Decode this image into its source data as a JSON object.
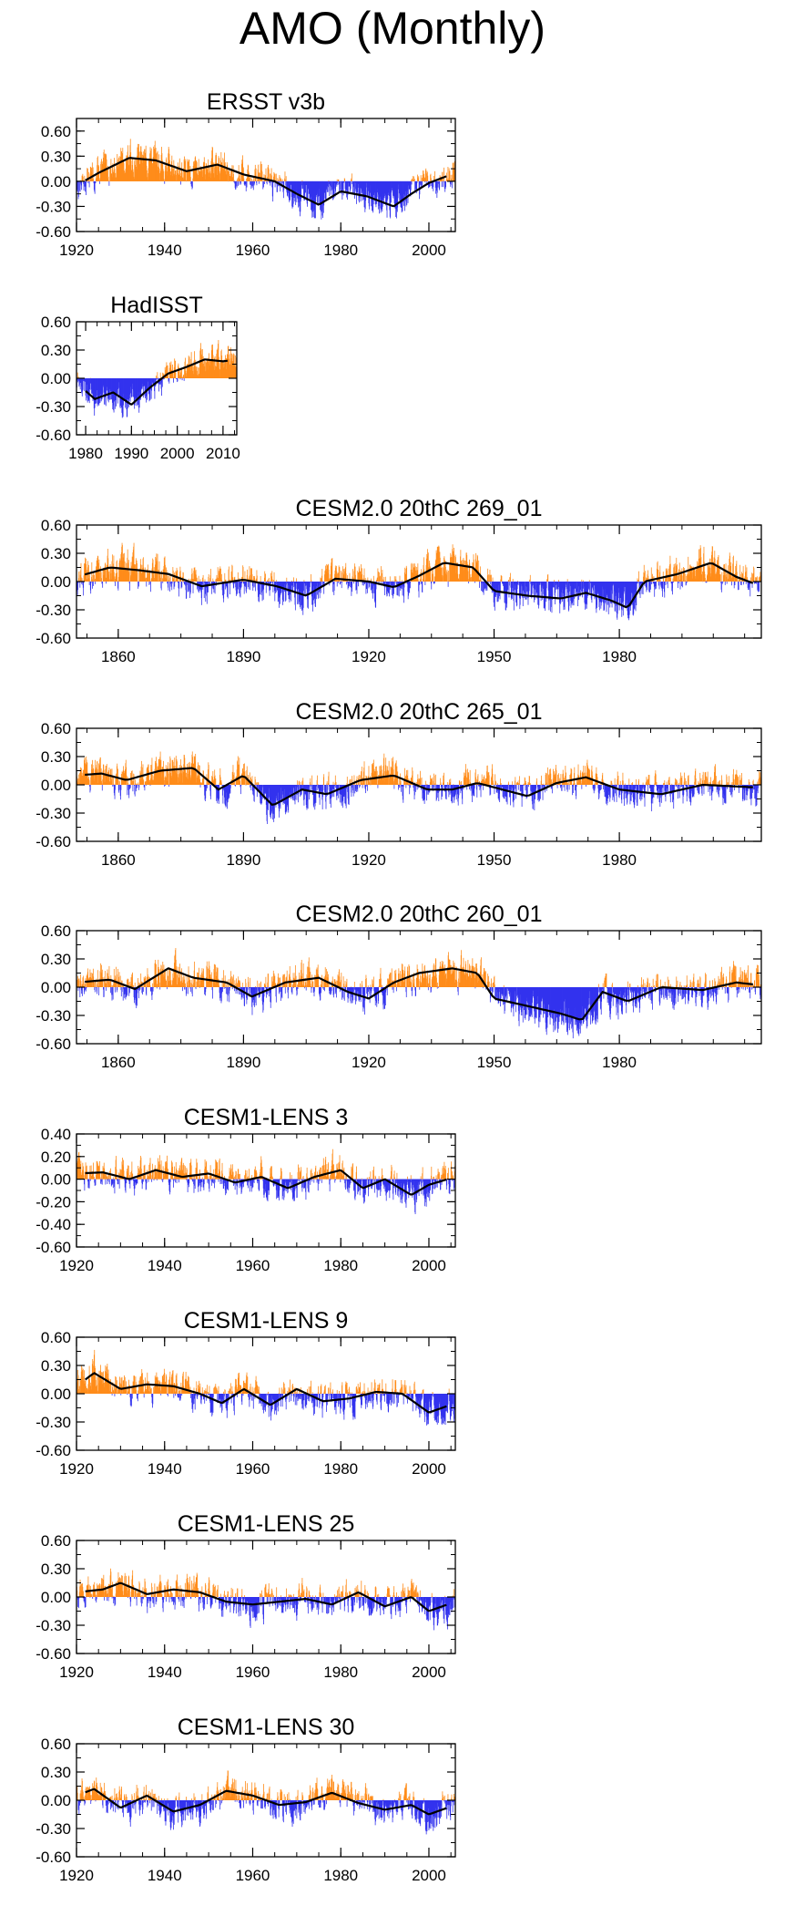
{
  "page_title": "AMO (Monthly)",
  "colors": {
    "positive": "#ff8c1a",
    "negative": "#3333ee",
    "smooth": "#000000",
    "axis": "#000000"
  },
  "chart_data": [
    {
      "type": "bar",
      "title": "ERSST v3b",
      "x_range": [
        1920,
        2006
      ],
      "ylim": [
        -0.6,
        0.75
      ],
      "yticks": [
        -0.6,
        -0.3,
        0.0,
        0.3,
        0.6
      ],
      "ytick_labels": [
        "-0.60",
        "-0.30",
        "0.00",
        "0.30",
        "0.60"
      ],
      "xticks": [
        1920,
        1940,
        1960,
        1980,
        2000
      ],
      "xtick_labels": [
        "1920",
        "1940",
        "1960",
        "1980",
        "2000"
      ],
      "trend": [
        [
          1920,
          -0.05
        ],
        [
          1925,
          0.1
        ],
        [
          1932,
          0.28
        ],
        [
          1938,
          0.25
        ],
        [
          1945,
          0.12
        ],
        [
          1952,
          0.2
        ],
        [
          1958,
          0.08
        ],
        [
          1965,
          0.0
        ],
        [
          1970,
          -0.15
        ],
        [
          1975,
          -0.28
        ],
        [
          1980,
          -0.12
        ],
        [
          1986,
          -0.18
        ],
        [
          1992,
          -0.3
        ],
        [
          1996,
          -0.15
        ],
        [
          2000,
          -0.02
        ],
        [
          2006,
          0.1
        ]
      ],
      "noise": 0.14
    },
    {
      "type": "bar",
      "title": "HadISST",
      "x_range": [
        1978,
        2013
      ],
      "ylim": [
        -0.6,
        0.6
      ],
      "yticks": [
        -0.6,
        -0.3,
        0.0,
        0.3,
        0.6
      ],
      "ytick_labels": [
        "-0.60",
        "-0.30",
        "0.00",
        "0.30",
        "0.60"
      ],
      "xticks": [
        1980,
        1990,
        2000,
        2010
      ],
      "xtick_labels": [
        "1980",
        "1990",
        "2000",
        "2010"
      ],
      "trend": [
        [
          1978,
          -0.05
        ],
        [
          1982,
          -0.22
        ],
        [
          1986,
          -0.15
        ],
        [
          1990,
          -0.28
        ],
        [
          1994,
          -0.1
        ],
        [
          1998,
          0.05
        ],
        [
          2002,
          0.12
        ],
        [
          2006,
          0.2
        ],
        [
          2010,
          0.18
        ],
        [
          2013,
          0.2
        ]
      ],
      "noise": 0.12
    },
    {
      "type": "bar",
      "title": "CESM2.0 20thC 269_01",
      "x_range": [
        1850,
        2014
      ],
      "ylim": [
        -0.6,
        0.6
      ],
      "yticks": [
        -0.6,
        -0.3,
        0.0,
        0.3,
        0.6
      ],
      "ytick_labels": [
        "-0.60",
        "-0.30",
        "0.00",
        "0.30",
        "0.60"
      ],
      "xticks": [
        1860,
        1890,
        1920,
        1950,
        1980
      ],
      "xtick_labels": [
        "1860",
        "1890",
        "1920",
        "1950",
        "1980"
      ],
      "trend": [
        [
          1850,
          0.05
        ],
        [
          1858,
          0.15
        ],
        [
          1865,
          0.12
        ],
        [
          1872,
          0.08
        ],
        [
          1880,
          -0.05
        ],
        [
          1890,
          0.02
        ],
        [
          1898,
          -0.05
        ],
        [
          1905,
          -0.15
        ],
        [
          1912,
          0.03
        ],
        [
          1920,
          0.0
        ],
        [
          1926,
          -0.06
        ],
        [
          1932,
          0.06
        ],
        [
          1938,
          0.2
        ],
        [
          1945,
          0.15
        ],
        [
          1950,
          -0.1
        ],
        [
          1958,
          -0.15
        ],
        [
          1966,
          -0.18
        ],
        [
          1972,
          -0.12
        ],
        [
          1978,
          -0.2
        ],
        [
          1982,
          -0.28
        ],
        [
          1986,
          0.0
        ],
        [
          1994,
          0.08
        ],
        [
          2002,
          0.2
        ],
        [
          2008,
          0.05
        ],
        [
          2014,
          -0.05
        ]
      ],
      "noise": 0.14
    },
    {
      "type": "bar",
      "title": "CESM2.0 20thC 265_01",
      "x_range": [
        1850,
        2014
      ],
      "ylim": [
        -0.6,
        0.6
      ],
      "yticks": [
        -0.6,
        -0.3,
        0.0,
        0.3,
        0.6
      ],
      "ytick_labels": [
        "-0.60",
        "-0.30",
        "0.00",
        "0.30",
        "0.60"
      ],
      "xticks": [
        1860,
        1890,
        1920,
        1950,
        1980
      ],
      "xtick_labels": [
        "1860",
        "1890",
        "1920",
        "1950",
        "1980"
      ],
      "trend": [
        [
          1850,
          0.1
        ],
        [
          1856,
          0.12
        ],
        [
          1862,
          0.05
        ],
        [
          1870,
          0.15
        ],
        [
          1878,
          0.18
        ],
        [
          1884,
          -0.05
        ],
        [
          1890,
          0.1
        ],
        [
          1897,
          -0.22
        ],
        [
          1904,
          -0.05
        ],
        [
          1910,
          -0.1
        ],
        [
          1918,
          0.05
        ],
        [
          1926,
          0.1
        ],
        [
          1934,
          -0.05
        ],
        [
          1940,
          -0.05
        ],
        [
          1946,
          0.02
        ],
        [
          1952,
          -0.05
        ],
        [
          1958,
          -0.12
        ],
        [
          1965,
          0.02
        ],
        [
          1972,
          0.08
        ],
        [
          1980,
          -0.05
        ],
        [
          1990,
          -0.1
        ],
        [
          2000,
          0.0
        ],
        [
          2014,
          -0.03
        ]
      ],
      "noise": 0.13
    },
    {
      "type": "bar",
      "title": "CESM2.0 20thC 260_01",
      "x_range": [
        1850,
        2014
      ],
      "ylim": [
        -0.6,
        0.6
      ],
      "yticks": [
        -0.6,
        -0.3,
        0.0,
        0.3,
        0.6
      ],
      "ytick_labels": [
        "-0.60",
        "-0.30",
        "0.00",
        "0.30",
        "0.60"
      ],
      "xticks": [
        1860,
        1890,
        1920,
        1950,
        1980
      ],
      "xtick_labels": [
        "1860",
        "1890",
        "1920",
        "1950",
        "1980"
      ],
      "trend": [
        [
          1850,
          0.05
        ],
        [
          1858,
          0.08
        ],
        [
          1864,
          -0.02
        ],
        [
          1872,
          0.2
        ],
        [
          1878,
          0.1
        ],
        [
          1886,
          0.05
        ],
        [
          1892,
          -0.1
        ],
        [
          1900,
          0.05
        ],
        [
          1908,
          0.1
        ],
        [
          1915,
          -0.05
        ],
        [
          1920,
          -0.12
        ],
        [
          1926,
          0.05
        ],
        [
          1932,
          0.15
        ],
        [
          1940,
          0.2
        ],
        [
          1946,
          0.15
        ],
        [
          1950,
          -0.12
        ],
        [
          1958,
          -0.2
        ],
        [
          1966,
          -0.28
        ],
        [
          1971,
          -0.35
        ],
        [
          1976,
          -0.05
        ],
        [
          1982,
          -0.15
        ],
        [
          1990,
          0.0
        ],
        [
          2000,
          -0.03
        ],
        [
          2008,
          0.05
        ],
        [
          2014,
          0.02
        ]
      ],
      "noise": 0.14
    },
    {
      "type": "bar",
      "title": "CESM1-LENS 3",
      "x_range": [
        1920,
        2006
      ],
      "ylim": [
        -0.6,
        0.4
      ],
      "yticks": [
        -0.6,
        -0.4,
        -0.2,
        0.0,
        0.2,
        0.4
      ],
      "ytick_labels": [
        "-0.60",
        "-0.40",
        "-0.20",
        "0.00",
        "0.20",
        "0.40"
      ],
      "xticks": [
        1920,
        1940,
        1960,
        1980,
        2000
      ],
      "xtick_labels": [
        "1920",
        "1940",
        "1960",
        "1980",
        "2000"
      ],
      "trend": [
        [
          1920,
          0.05
        ],
        [
          1926,
          0.06
        ],
        [
          1932,
          0.0
        ],
        [
          1938,
          0.08
        ],
        [
          1944,
          0.02
        ],
        [
          1950,
          0.05
        ],
        [
          1956,
          -0.03
        ],
        [
          1962,
          0.02
        ],
        [
          1968,
          -0.08
        ],
        [
          1974,
          0.02
        ],
        [
          1980,
          0.08
        ],
        [
          1985,
          -0.08
        ],
        [
          1990,
          0.0
        ],
        [
          1996,
          -0.14
        ],
        [
          2000,
          -0.05
        ],
        [
          2006,
          0.02
        ]
      ],
      "noise": 0.11
    },
    {
      "type": "bar",
      "title": "CESM1-LENS 9",
      "x_range": [
        1920,
        2006
      ],
      "ylim": [
        -0.6,
        0.6
      ],
      "yticks": [
        -0.6,
        -0.3,
        0.0,
        0.3,
        0.6
      ],
      "ytick_labels": [
        "-0.60",
        "-0.30",
        "0.00",
        "0.30",
        "0.60"
      ],
      "xticks": [
        1920,
        1940,
        1960,
        1980,
        2000
      ],
      "xtick_labels": [
        "1920",
        "1940",
        "1960",
        "1980",
        "2000"
      ],
      "trend": [
        [
          1920,
          0.08
        ],
        [
          1924,
          0.22
        ],
        [
          1930,
          0.05
        ],
        [
          1936,
          0.1
        ],
        [
          1942,
          0.08
        ],
        [
          1948,
          0.0
        ],
        [
          1953,
          -0.1
        ],
        [
          1958,
          0.05
        ],
        [
          1964,
          -0.12
        ],
        [
          1970,
          0.05
        ],
        [
          1976,
          -0.08
        ],
        [
          1982,
          -0.05
        ],
        [
          1988,
          0.02
        ],
        [
          1994,
          0.0
        ],
        [
          2000,
          -0.2
        ],
        [
          2006,
          -0.1
        ]
      ],
      "noise": 0.13
    },
    {
      "type": "bar",
      "title": "CESM1-LENS 25",
      "x_range": [
        1920,
        2006
      ],
      "ylim": [
        -0.6,
        0.6
      ],
      "yticks": [
        -0.6,
        -0.3,
        0.0,
        0.3,
        0.6
      ],
      "ytick_labels": [
        "-0.60",
        "-0.30",
        "0.00",
        "0.30",
        "0.60"
      ],
      "xticks": [
        1920,
        1940,
        1960,
        1980,
        2000
      ],
      "xtick_labels": [
        "1920",
        "1940",
        "1960",
        "1980",
        "2000"
      ],
      "trend": [
        [
          1920,
          0.05
        ],
        [
          1926,
          0.08
        ],
        [
          1930,
          0.15
        ],
        [
          1936,
          0.03
        ],
        [
          1942,
          0.08
        ],
        [
          1948,
          0.05
        ],
        [
          1954,
          -0.05
        ],
        [
          1960,
          -0.08
        ],
        [
          1966,
          -0.05
        ],
        [
          1972,
          -0.02
        ],
        [
          1978,
          -0.08
        ],
        [
          1984,
          0.05
        ],
        [
          1990,
          -0.1
        ],
        [
          1996,
          0.0
        ],
        [
          2000,
          -0.15
        ],
        [
          2006,
          -0.05
        ]
      ],
      "noise": 0.13
    },
    {
      "type": "bar",
      "title": "CESM1-LENS 30",
      "x_range": [
        1920,
        2006
      ],
      "ylim": [
        -0.6,
        0.6
      ],
      "yticks": [
        -0.6,
        -0.3,
        0.0,
        0.3,
        0.6
      ],
      "ytick_labels": [
        "-0.60",
        "-0.30",
        "0.00",
        "0.30",
        "0.60"
      ],
      "xticks": [
        1920,
        1940,
        1960,
        1980,
        2000
      ],
      "xtick_labels": [
        "1920",
        "1940",
        "1960",
        "1980",
        "2000"
      ],
      "trend": [
        [
          1920,
          0.05
        ],
        [
          1924,
          0.12
        ],
        [
          1930,
          -0.08
        ],
        [
          1936,
          0.05
        ],
        [
          1942,
          -0.12
        ],
        [
          1948,
          -0.05
        ],
        [
          1954,
          0.1
        ],
        [
          1960,
          0.05
        ],
        [
          1966,
          -0.05
        ],
        [
          1972,
          -0.02
        ],
        [
          1978,
          0.08
        ],
        [
          1984,
          -0.03
        ],
        [
          1990,
          -0.1
        ],
        [
          1996,
          -0.05
        ],
        [
          2000,
          -0.15
        ],
        [
          2006,
          -0.05
        ]
      ],
      "noise": 0.13
    }
  ]
}
